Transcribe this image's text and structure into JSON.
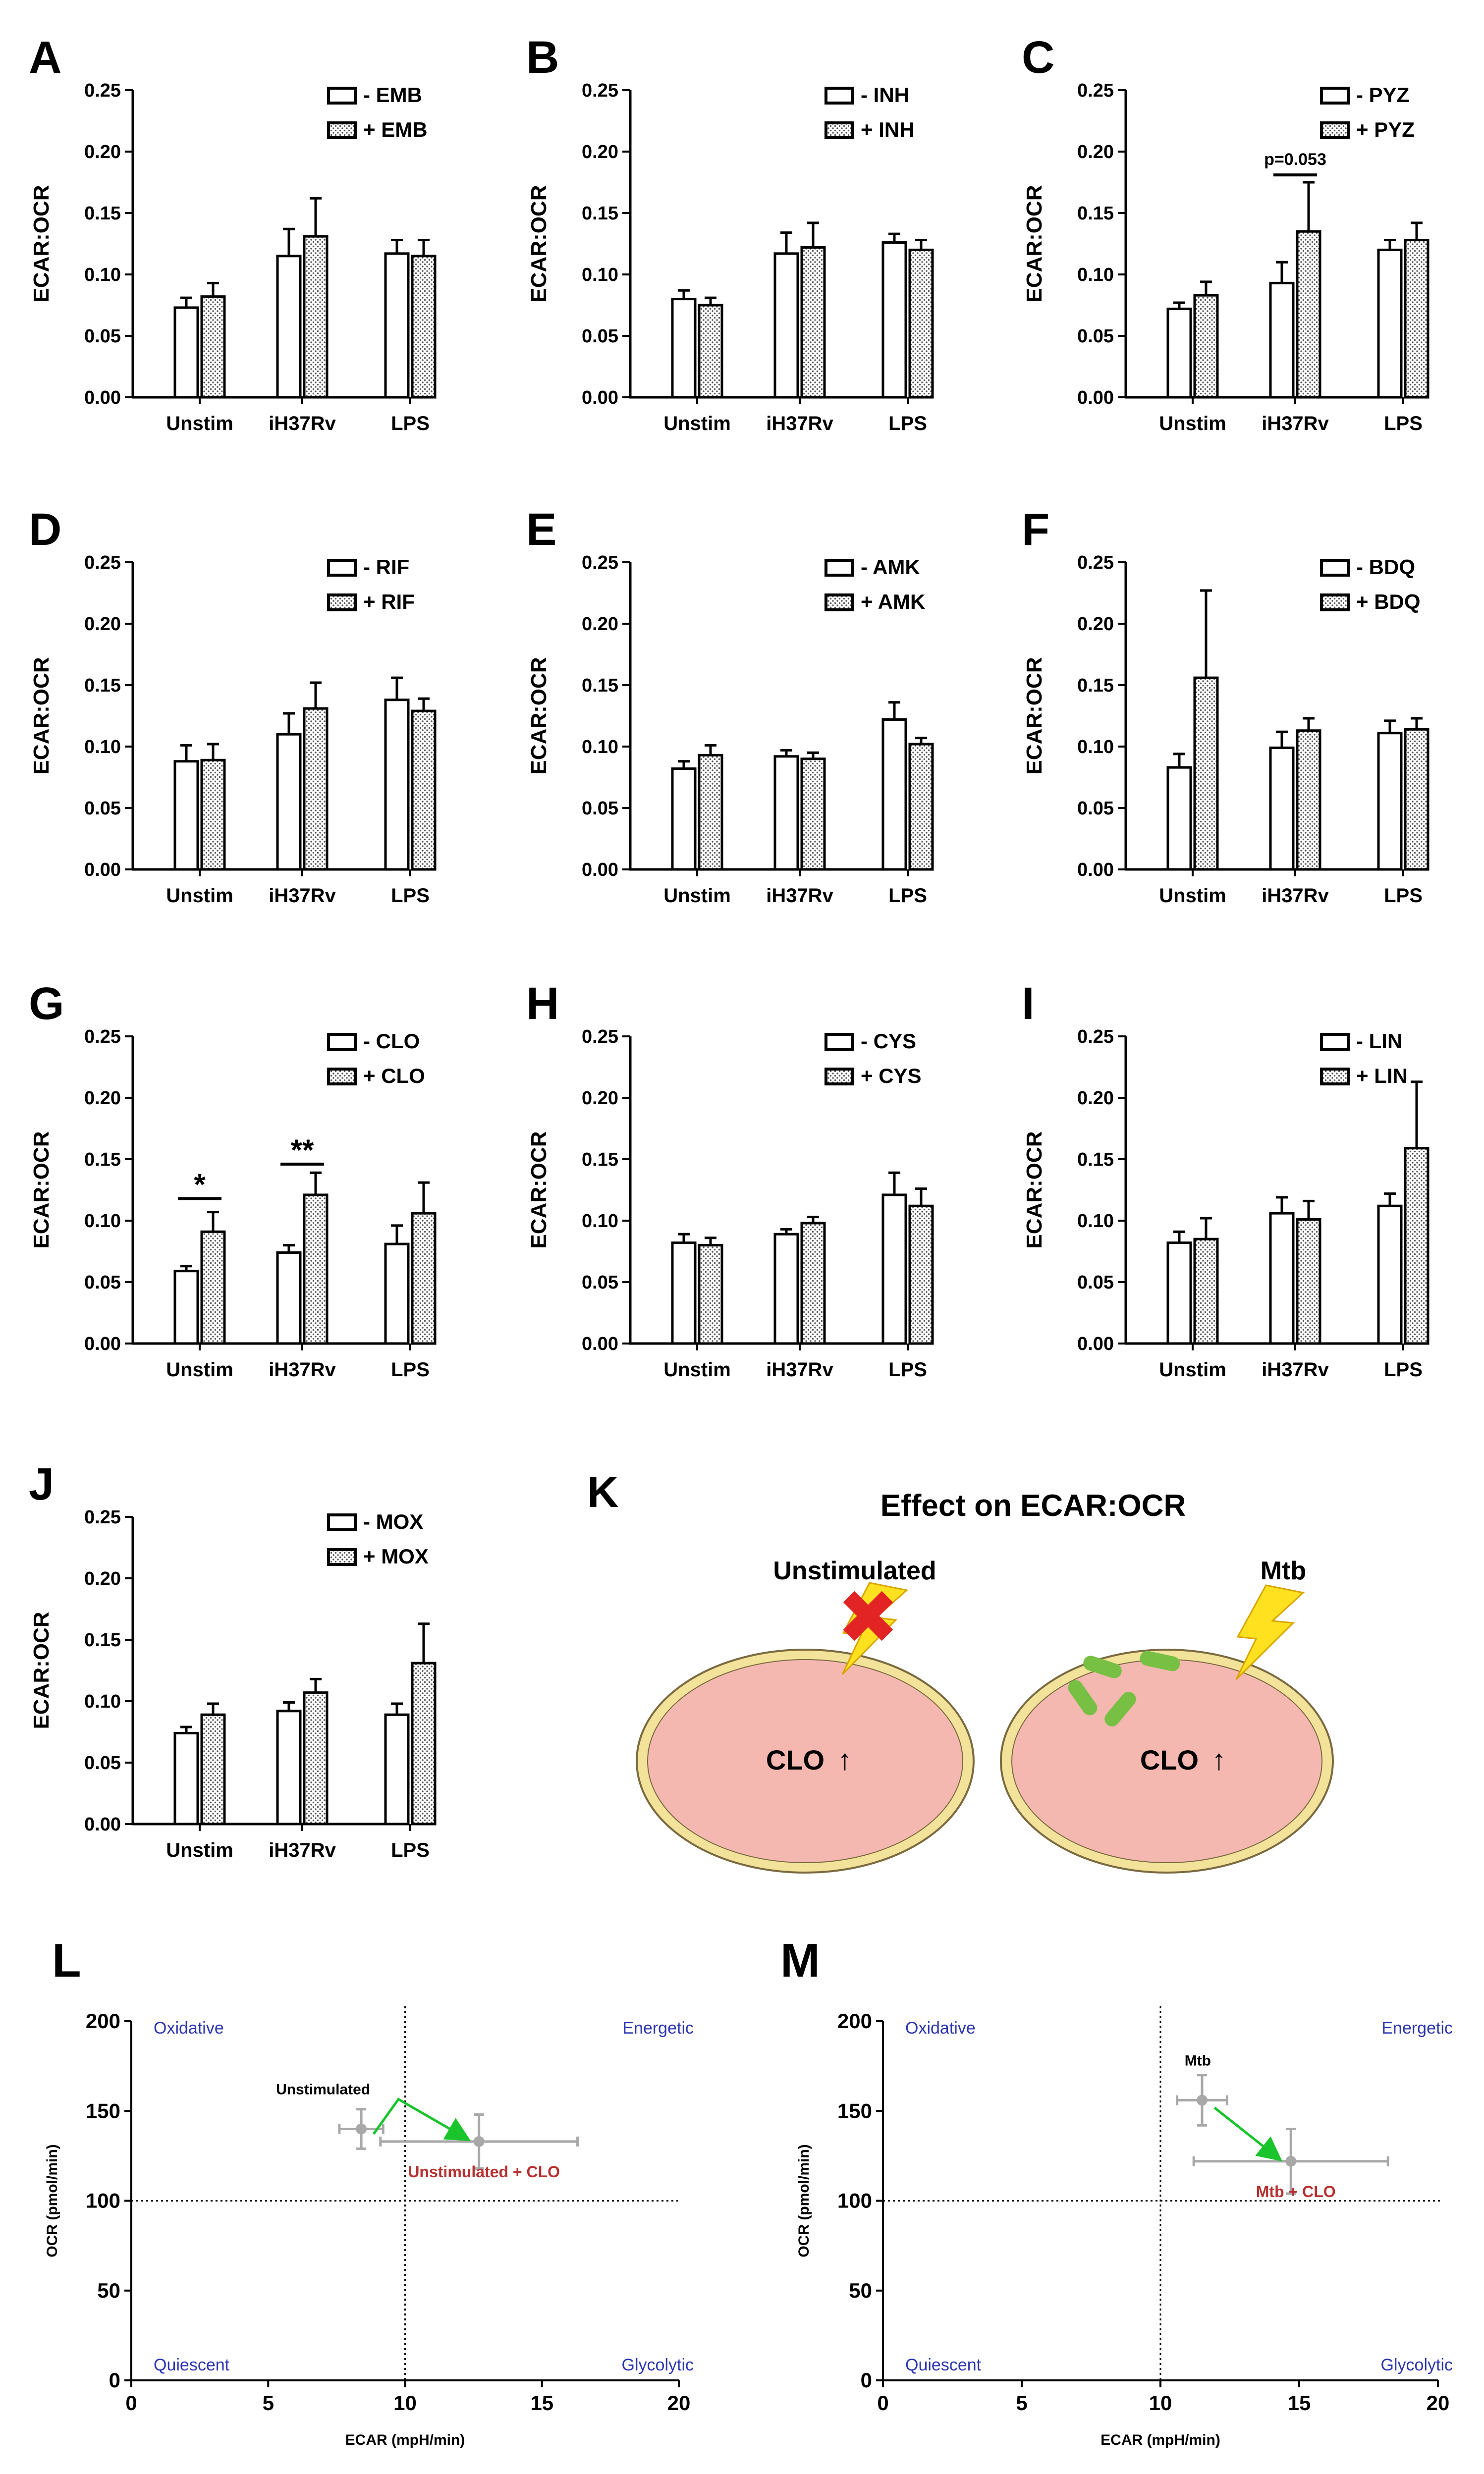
{
  "figure": {
    "panel_k": {
      "letter": "K",
      "title": "Effect on ECAR:OCR",
      "cells": [
        {
          "label": "Unstimulated",
          "drug": "CLO",
          "arrow": "↑",
          "blocked": true
        },
        {
          "label": "Mtb",
          "drug": "CLO",
          "arrow": "↑",
          "blocked": false
        }
      ]
    }
  },
  "colors": {
    "bar_fill_empty": "#ffffff",
    "bar_stroke": "#000000",
    "cell_fill": "#f4b8b0",
    "cell_rim": "#f3e29a",
    "cell_outline": "#7a6a40",
    "bacteria": "#77c043",
    "bolt": "#ffe11f",
    "bolt_stroke": "#d9a400",
    "x_mark": "#e32424",
    "clo_text": "#1f6ec7",
    "up_arrow": "#1aa84a",
    "scatter_point": "#a8a8a8",
    "scatter_arrow": "#19c42c",
    "quadrant_label": "#2b35b0",
    "treated_label": "#b73030"
  },
  "chart_data": [
    {
      "id": "A",
      "type": "bar",
      "ylabel": "ECAR:OCR",
      "ylim": [
        0,
        0.25
      ],
      "yticks": [
        "0.00",
        "0.05",
        "0.10",
        "0.15",
        "0.20",
        "0.25"
      ],
      "categories": [
        "Unstim",
        "iH37Rv",
        "LPS"
      ],
      "legend": [
        "- EMB",
        "+ EMB"
      ],
      "series": [
        {
          "name": "- EMB",
          "values": [
            0.073,
            0.115,
            0.117
          ],
          "errors": [
            0.008,
            0.022,
            0.011
          ]
        },
        {
          "name": "+ EMB",
          "values": [
            0.082,
            0.131,
            0.115
          ],
          "errors": [
            0.011,
            0.031,
            0.013
          ]
        }
      ],
      "annotations": []
    },
    {
      "id": "B",
      "type": "bar",
      "ylabel": "ECAR:OCR",
      "ylim": [
        0,
        0.25
      ],
      "yticks": [
        "0.00",
        "0.05",
        "0.10",
        "0.15",
        "0.20",
        "0.25"
      ],
      "categories": [
        "Unstim",
        "iH37Rv",
        "LPS"
      ],
      "legend": [
        "- INH",
        "+ INH"
      ],
      "series": [
        {
          "name": "- INH",
          "values": [
            0.08,
            0.117,
            0.126
          ],
          "errors": [
            0.007,
            0.017,
            0.007
          ]
        },
        {
          "name": "+ INH",
          "values": [
            0.075,
            0.122,
            0.12
          ],
          "errors": [
            0.006,
            0.02,
            0.008
          ]
        }
      ],
      "annotations": []
    },
    {
      "id": "C",
      "type": "bar",
      "ylabel": "ECAR:OCR",
      "ylim": [
        0,
        0.25
      ],
      "yticks": [
        "0.00",
        "0.05",
        "0.10",
        "0.15",
        "0.20",
        "0.25"
      ],
      "categories": [
        "Unstim",
        "iH37Rv",
        "LPS"
      ],
      "legend": [
        "- PYZ",
        "+ PYZ"
      ],
      "series": [
        {
          "name": "- PYZ",
          "values": [
            0.072,
            0.093,
            0.12
          ],
          "errors": [
            0.005,
            0.017,
            0.008
          ]
        },
        {
          "name": "+ PYZ",
          "values": [
            0.083,
            0.135,
            0.128
          ],
          "errors": [
            0.011,
            0.04,
            0.014
          ]
        }
      ],
      "annotations": [
        {
          "group": 1,
          "text": "p=0.053",
          "y": 0.181
        }
      ]
    },
    {
      "id": "D",
      "type": "bar",
      "ylabel": "ECAR:OCR",
      "ylim": [
        0,
        0.25
      ],
      "yticks": [
        "0.00",
        "0.05",
        "0.10",
        "0.15",
        "0.20",
        "0.25"
      ],
      "categories": [
        "Unstim",
        "iH37Rv",
        "LPS"
      ],
      "legend": [
        "- RIF",
        "+ RIF"
      ],
      "series": [
        {
          "name": "- RIF",
          "values": [
            0.088,
            0.11,
            0.138
          ],
          "errors": [
            0.013,
            0.017,
            0.018
          ]
        },
        {
          "name": "+ RIF",
          "values": [
            0.089,
            0.131,
            0.129
          ],
          "errors": [
            0.013,
            0.021,
            0.01
          ]
        }
      ],
      "annotations": []
    },
    {
      "id": "E",
      "type": "bar",
      "ylabel": "ECAR:OCR",
      "ylim": [
        0,
        0.25
      ],
      "yticks": [
        "0.00",
        "0.05",
        "0.10",
        "0.15",
        "0.20",
        "0.25"
      ],
      "categories": [
        "Unstim",
        "iH37Rv",
        "LPS"
      ],
      "legend": [
        "- AMK",
        "+ AMK"
      ],
      "series": [
        {
          "name": "- AMK",
          "values": [
            0.082,
            0.092,
            0.122
          ],
          "errors": [
            0.006,
            0.005,
            0.014
          ]
        },
        {
          "name": "+ AMK",
          "values": [
            0.093,
            0.09,
            0.102
          ],
          "errors": [
            0.008,
            0.005,
            0.005
          ]
        }
      ],
      "annotations": []
    },
    {
      "id": "F",
      "type": "bar",
      "ylabel": "ECAR:OCR",
      "ylim": [
        0,
        0.25
      ],
      "yticks": [
        "0.00",
        "0.05",
        "0.10",
        "0.15",
        "0.20",
        "0.25"
      ],
      "categories": [
        "Unstim",
        "iH37Rv",
        "LPS"
      ],
      "legend": [
        "- BDQ",
        "+ BDQ"
      ],
      "series": [
        {
          "name": "- BDQ",
          "values": [
            0.083,
            0.099,
            0.111
          ],
          "errors": [
            0.011,
            0.013,
            0.01
          ]
        },
        {
          "name": "+ BDQ",
          "values": [
            0.156,
            0.113,
            0.114
          ],
          "errors": [
            0.071,
            0.01,
            0.009
          ]
        }
      ],
      "annotations": []
    },
    {
      "id": "G",
      "type": "bar",
      "ylabel": "ECAR:OCR",
      "ylim": [
        0,
        0.25
      ],
      "yticks": [
        "0.00",
        "0.05",
        "0.10",
        "0.15",
        "0.20",
        "0.25"
      ],
      "categories": [
        "Unstim",
        "iH37Rv",
        "LPS"
      ],
      "legend": [
        "- CLO",
        "+ CLO"
      ],
      "series": [
        {
          "name": "- CLO",
          "values": [
            0.059,
            0.074,
            0.081
          ],
          "errors": [
            0.004,
            0.006,
            0.015
          ]
        },
        {
          "name": "+ CLO",
          "values": [
            0.091,
            0.121,
            0.106
          ],
          "errors": [
            0.016,
            0.018,
            0.025
          ]
        }
      ],
      "annotations": [
        {
          "group": 0,
          "text": "*",
          "y": 0.118
        },
        {
          "group": 1,
          "text": "**",
          "y": 0.146
        }
      ]
    },
    {
      "id": "H",
      "type": "bar",
      "ylabel": "ECAR:OCR",
      "ylim": [
        0,
        0.25
      ],
      "yticks": [
        "0.00",
        "0.05",
        "0.10",
        "0.15",
        "0.20",
        "0.25"
      ],
      "categories": [
        "Unstim",
        "iH37Rv",
        "LPS"
      ],
      "legend": [
        "- CYS",
        "+ CYS"
      ],
      "series": [
        {
          "name": "- CYS",
          "values": [
            0.082,
            0.089,
            0.121
          ],
          "errors": [
            0.007,
            0.004,
            0.018
          ]
        },
        {
          "name": "+ CYS",
          "values": [
            0.08,
            0.098,
            0.112
          ],
          "errors": [
            0.006,
            0.005,
            0.014
          ]
        }
      ],
      "annotations": []
    },
    {
      "id": "I",
      "type": "bar",
      "ylabel": "ECAR:OCR",
      "ylim": [
        0,
        0.25
      ],
      "yticks": [
        "0.00",
        "0.05",
        "0.10",
        "0.15",
        "0.20",
        "0.25"
      ],
      "categories": [
        "Unstim",
        "iH37Rv",
        "LPS"
      ],
      "legend": [
        "- LIN",
        "+ LIN"
      ],
      "series": [
        {
          "name": "- LIN",
          "values": [
            0.082,
            0.106,
            0.112
          ],
          "errors": [
            0.009,
            0.013,
            0.01
          ]
        },
        {
          "name": "+ LIN",
          "values": [
            0.085,
            0.101,
            0.159
          ],
          "errors": [
            0.017,
            0.015,
            0.054
          ]
        }
      ],
      "annotations": []
    },
    {
      "id": "J",
      "type": "bar",
      "ylabel": "ECAR:OCR",
      "ylim": [
        0,
        0.25
      ],
      "yticks": [
        "0.00",
        "0.05",
        "0.10",
        "0.15",
        "0.20",
        "0.25"
      ],
      "categories": [
        "Unstim",
        "iH37Rv",
        "LPS"
      ],
      "legend": [
        "- MOX",
        "+ MOX"
      ],
      "series": [
        {
          "name": "- MOX",
          "values": [
            0.074,
            0.092,
            0.089
          ],
          "errors": [
            0.005,
            0.007,
            0.009
          ]
        },
        {
          "name": "+ MOX",
          "values": [
            0.089,
            0.107,
            0.131
          ],
          "errors": [
            0.009,
            0.011,
            0.032
          ]
        }
      ],
      "annotations": []
    },
    {
      "id": "L",
      "type": "scatter",
      "xlabel": "ECAR (mpH/min)",
      "ylabel": "OCR (pmol/min)",
      "xlim": [
        0,
        20
      ],
      "ylim": [
        0,
        200
      ],
      "xticks": [
        "0",
        "5",
        "10",
        "15",
        "20"
      ],
      "yticks": [
        "0",
        "50",
        "100",
        "150",
        "200"
      ],
      "reference": {
        "x": 10,
        "y": 100
      },
      "quadrants": {
        "top_left": "Oxidative",
        "top_right": "Energetic",
        "bottom_left": "Quiescent",
        "bottom_right": "Glycolytic"
      },
      "points": [
        {
          "label": "Unstimulated",
          "x": 8.4,
          "y": 140,
          "xerr": 0.8,
          "yerr": 11
        },
        {
          "label": "Unstimulated + CLO",
          "x": 12.7,
          "y": 133,
          "xerr": 3.6,
          "yerr": 15
        }
      ]
    },
    {
      "id": "M",
      "type": "scatter",
      "xlabel": "ECAR (mpH/min)",
      "ylabel": "OCR (pmol/min)",
      "xlim": [
        0,
        20
      ],
      "ylim": [
        0,
        200
      ],
      "xticks": [
        "0",
        "5",
        "10",
        "15",
        "20"
      ],
      "yticks": [
        "0",
        "50",
        "100",
        "150",
        "200"
      ],
      "reference": {
        "x": 10,
        "y": 100
      },
      "quadrants": {
        "top_left": "Oxidative",
        "top_right": "Energetic",
        "bottom_left": "Quiescent",
        "bottom_right": "Glycolytic"
      },
      "points": [
        {
          "label": "Mtb",
          "x": 11.5,
          "y": 156,
          "xerr": 0.9,
          "yerr": 14
        },
        {
          "label": "Mtb + CLO",
          "x": 14.7,
          "y": 122,
          "xerr": 3.5,
          "yerr": 18
        }
      ]
    }
  ]
}
